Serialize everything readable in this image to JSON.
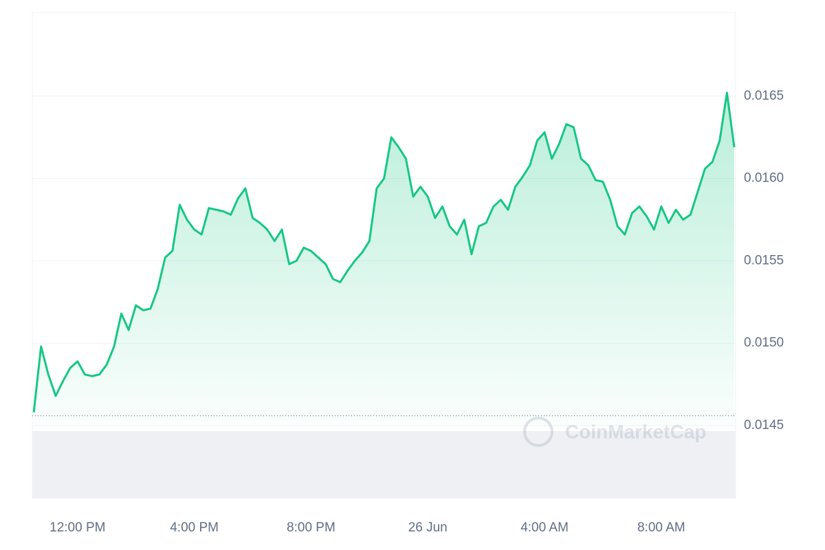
{
  "chart_data": {
    "type": "line",
    "x": [
      10.5,
      10.75,
      11,
      11.25,
      11.5,
      11.75,
      12,
      12.25,
      12.5,
      12.75,
      13,
      13.25,
      13.5,
      13.75,
      14,
      14.25,
      14.5,
      14.75,
      15,
      15.25,
      15.5,
      15.75,
      16,
      16.25,
      16.5,
      16.75,
      17,
      17.25,
      17.5,
      17.75,
      18,
      18.25,
      18.5,
      18.75,
      19,
      19.25,
      19.5,
      19.75,
      20,
      20.25,
      20.5,
      20.75,
      21,
      21.25,
      21.5,
      21.75,
      22,
      22.25,
      22.5,
      22.75,
      23,
      23.25,
      23.5,
      23.75,
      24,
      24.25,
      24.5,
      24.75,
      25,
      25.25,
      25.5,
      25.75,
      26,
      26.25,
      26.5,
      26.75,
      27,
      27.25,
      27.5,
      27.75,
      28,
      28.25,
      28.5,
      28.75,
      29,
      29.25,
      29.5,
      29.75,
      30,
      30.25,
      30.5,
      30.75,
      31,
      31.25,
      31.5,
      31.75,
      32,
      32.25,
      32.5,
      32.75,
      33,
      33.25,
      33.5,
      33.75,
      34,
      34.25,
      34.5
    ],
    "series": [
      {
        "color": "#16c784",
        "values": [
          0.01458,
          0.01498,
          0.01481,
          0.01468,
          0.01477,
          0.01485,
          0.01489,
          0.01481,
          0.0148,
          0.01481,
          0.01487,
          0.01498,
          0.01518,
          0.01508,
          0.01523,
          0.0152,
          0.01521,
          0.01533,
          0.01552,
          0.01556,
          0.01584,
          0.01575,
          0.01569,
          0.01566,
          0.01582,
          0.01581,
          0.0158,
          0.01578,
          0.01588,
          0.01594,
          0.01576,
          0.01573,
          0.01569,
          0.01562,
          0.01569,
          0.01548,
          0.0155,
          0.01558,
          0.01556,
          0.01552,
          0.01548,
          0.01539,
          0.01537,
          0.01544,
          0.0155,
          0.01555,
          0.01562,
          0.01594,
          0.016,
          0.01625,
          0.01619,
          0.01612,
          0.01589,
          0.01595,
          0.01589,
          0.01576,
          0.01583,
          0.01571,
          0.01566,
          0.01575,
          0.01554,
          0.01571,
          0.01573,
          0.01583,
          0.01587,
          0.01581,
          0.01595,
          0.01601,
          0.01608,
          0.01623,
          0.01628,
          0.01612,
          0.01621,
          0.01633,
          0.01631,
          0.01612,
          0.01608,
          0.01599,
          0.01598,
          0.01587,
          0.01571,
          0.01566,
          0.01579,
          0.01583,
          0.01577,
          0.01569,
          0.01583,
          0.01573,
          0.01581,
          0.01575,
          0.01578,
          0.01592,
          0.01606,
          0.0161,
          0.01623,
          0.01652,
          0.01619
        ]
      }
    ],
    "baseline": 0.01456,
    "xlim": [
      10.45,
      34.5
    ],
    "xticks": [
      {
        "value": 12,
        "label": "12:00 PM"
      },
      {
        "value": 16,
        "label": "4:00 PM"
      },
      {
        "value": 20,
        "label": "8:00 PM"
      },
      {
        "value": 24,
        "label": "26 Jun"
      },
      {
        "value": 28,
        "label": "4:00 AM"
      },
      {
        "value": 32,
        "label": "8:00 AM"
      }
    ],
    "ylim": [
      0.0145,
      0.017
    ],
    "yticks": [
      0.0145,
      {
        "value": 0.015,
        "label": "0.0150"
      },
      0.0155,
      {
        "value": 0.016,
        "label": "0.0160"
      },
      0.0165
    ],
    "grid": true,
    "watermark": "CoinMarketCap"
  }
}
